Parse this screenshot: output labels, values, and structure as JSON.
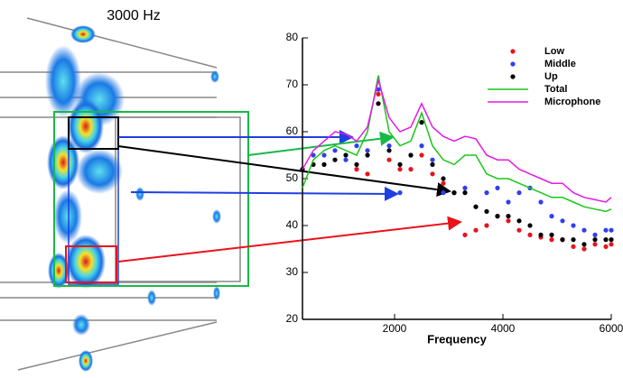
{
  "image": {
    "caption": "3000 Hz"
  },
  "chart_data": {
    "type": "scatter",
    "xlabel": "Frequency",
    "xlim": [
      300,
      6000
    ],
    "ylim": [
      20,
      80
    ],
    "xticks": [
      2000,
      4000,
      6000
    ],
    "yticks": [
      20,
      30,
      40,
      50,
      60,
      70,
      80
    ],
    "legend": "top-right",
    "series": [
      {
        "name": "Low",
        "color": "#e8131b",
        "style": "markers",
        "x": [
          1300,
          1500,
          1700,
          1900,
          2100,
          2300,
          2500,
          2700,
          2900,
          3100,
          3300,
          3500,
          3700,
          3900,
          4100,
          4300,
          4500,
          4700,
          4900,
          5100,
          5300,
          5500,
          5700,
          5900,
          6000
        ],
        "values": [
          52,
          51,
          68,
          54,
          52,
          52,
          55,
          51,
          49,
          47,
          38,
          39,
          40,
          42,
          41,
          39,
          38,
          37.5,
          37,
          37,
          35.5,
          35,
          36,
          35.5,
          36
        ]
      },
      {
        "name": "Middle",
        "color": "#2f3ff0",
        "style": "markers",
        "x": [
          500,
          700,
          900,
          1100,
          1300,
          1500,
          1700,
          1900,
          2100,
          2300,
          2500,
          2700,
          2900,
          3100,
          3300,
          3500,
          3700,
          3900,
          4100,
          4300,
          4500,
          4700,
          4900,
          5100,
          5300,
          5500,
          5700,
          5900,
          6000
        ],
        "values": [
          55,
          55,
          56,
          54,
          57,
          56,
          69,
          57,
          47,
          55,
          57,
          54,
          47,
          47,
          48,
          44,
          47,
          48,
          45,
          47,
          48,
          45,
          42,
          41,
          40,
          39,
          38,
          39,
          39
        ]
      },
      {
        "name": "Up",
        "color": "#000000",
        "style": "markers",
        "x": [
          300,
          500,
          700,
          900,
          1100,
          1300,
          1500,
          1700,
          1900,
          2100,
          2300,
          2500,
          2700,
          2900,
          3100,
          3300,
          3500,
          3700,
          3900,
          4100,
          4300,
          4500,
          4700,
          4900,
          5100,
          5300,
          5500,
          5700,
          5900,
          6000
        ],
        "values": [
          52,
          53,
          53,
          54,
          55,
          53,
          55,
          66,
          56,
          53,
          55,
          62,
          53,
          50,
          47,
          47,
          44,
          43,
          42,
          42,
          41,
          40,
          38,
          38,
          37,
          37,
          36,
          37,
          37,
          37
        ]
      },
      {
        "name": "Total",
        "color": "#19c619",
        "style": "line",
        "x": [
          300,
          500,
          700,
          900,
          1100,
          1300,
          1500,
          1700,
          1900,
          2100,
          2300,
          2500,
          2700,
          2900,
          3100,
          3300,
          3500,
          3700,
          3900,
          4100,
          4300,
          4500,
          4700,
          4900,
          5100,
          5300,
          5500,
          5700,
          5900,
          6000
        ],
        "values": [
          48,
          54,
          56,
          57,
          56,
          55,
          60,
          72,
          60,
          57,
          58,
          64,
          57,
          54,
          53,
          55,
          55,
          51,
          50,
          50,
          49,
          48,
          47,
          46,
          46,
          45,
          44,
          43.5,
          43,
          43.5
        ]
      },
      {
        "name": "Microphone",
        "color": "#e619e6",
        "style": "line",
        "x": [
          300,
          500,
          700,
          900,
          1100,
          1300,
          1500,
          1700,
          1900,
          2100,
          2300,
          2500,
          2700,
          2900,
          3100,
          3300,
          3500,
          3700,
          3900,
          4100,
          4300,
          4500,
          4700,
          4900,
          5100,
          5300,
          5500,
          5700,
          5900,
          6000
        ],
        "values": [
          52,
          56,
          58,
          60,
          59.5,
          58,
          61,
          71,
          63,
          60,
          61,
          66,
          61,
          59,
          58,
          59,
          58.5,
          55,
          54,
          54,
          52,
          51,
          50,
          49,
          49,
          47,
          46,
          45.5,
          45,
          46
        ]
      }
    ]
  }
}
